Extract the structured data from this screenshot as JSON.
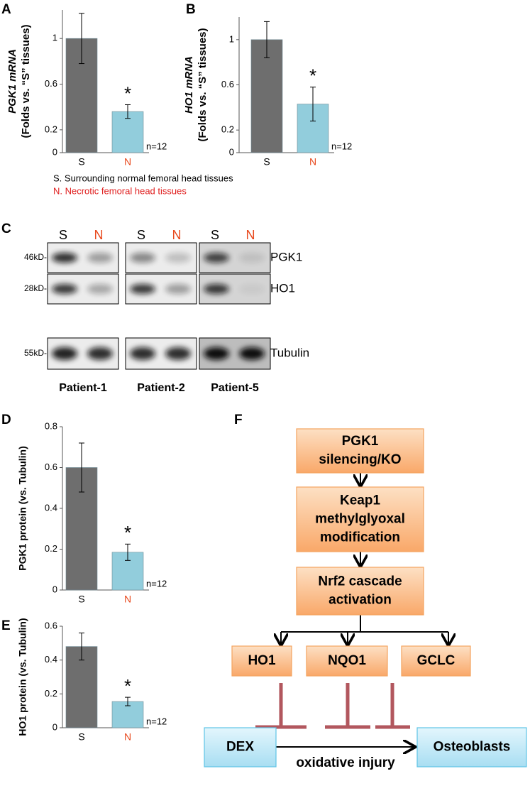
{
  "chart_data": [
    {
      "type": "bar",
      "panel_label": "A",
      "ylabel": [
        "PGK1 mRNA",
        "(Folds vs. “S” tissues)"
      ],
      "categories": [
        "S",
        "N"
      ],
      "values": [
        1,
        0.36
      ],
      "errors": [
        0.22,
        0.06
      ],
      "colors": [
        "#6e6e6e",
        "#92cddc"
      ],
      "category_colors": [
        "#000000",
        "#e8481c"
      ],
      "ylim": [
        0,
        1.25
      ],
      "yticks": [
        0,
        0.2,
        0.6,
        1
      ],
      "annotations": [
        "*",
        "n=12"
      ]
    },
    {
      "type": "bar",
      "panel_label": "B",
      "ylabel": [
        "HO1 mRNA",
        "(Folds vs. “S” tissues)"
      ],
      "categories": [
        "S",
        "N"
      ],
      "values": [
        1,
        0.43
      ],
      "errors": [
        0.16,
        0.15
      ],
      "colors": [
        "#6e6e6e",
        "#92cddc"
      ],
      "category_colors": [
        "#000000",
        "#e8481c"
      ],
      "ylim": [
        0,
        1.2
      ],
      "yticks": [
        0,
        0.2,
        0.6,
        1
      ],
      "annotations": [
        "*",
        "n=12"
      ]
    },
    {
      "type": "bar",
      "panel_label": "D",
      "ylabel": "PGK1 protein (vs. Tubulin)",
      "categories": [
        "S",
        "N"
      ],
      "values": [
        0.6,
        0.185
      ],
      "errors": [
        0.12,
        0.04
      ],
      "colors": [
        "#6e6e6e",
        "#92cddc"
      ],
      "category_colors": [
        "#000000",
        "#e8481c"
      ],
      "ylim": [
        0,
        0.8
      ],
      "yticks": [
        0,
        0.2,
        0.4,
        0.6,
        0.8
      ],
      "annotations": [
        "*",
        "n=12"
      ]
    },
    {
      "type": "bar",
      "panel_label": "E",
      "ylabel": "HO1 protein (vs. Tubulin)",
      "categories": [
        "S",
        "N"
      ],
      "values": [
        0.48,
        0.155
      ],
      "errors": [
        0.08,
        0.025
      ],
      "colors": [
        "#6e6e6e",
        "#92cddc"
      ],
      "category_colors": [
        "#000000",
        "#e8481c"
      ],
      "ylim": [
        0,
        0.6
      ],
      "yticks": [
        0,
        0.2,
        0.4,
        0.6
      ],
      "annotations": [
        "*",
        "n=12"
      ]
    }
  ],
  "legend_text": [
    "S. Surrounding normal femoral head tissues",
    "N. Necrotic femoral head tissues"
  ],
  "blot": {
    "panel_label": "C",
    "lanes": [
      "S",
      "N"
    ],
    "markers": [
      "46kD-",
      "28kD-",
      "55kD-"
    ],
    "proteins": [
      "PGK1",
      "HO1",
      "Tubulin"
    ],
    "patients": [
      "Patient-1",
      "Patient-2",
      "Patient-5"
    ]
  },
  "diagram": {
    "panel_label": "F",
    "nodes": [
      {
        "lines": [
          "PGK1",
          "silencing/KO"
        ]
      },
      {
        "lines": [
          "Keap1",
          "methylglyoxal",
          "modification"
        ]
      },
      {
        "lines": [
          "Nrf2 cascade",
          "activation"
        ]
      },
      {
        "lines": [
          "HO1"
        ]
      },
      {
        "lines": [
          "NQO1"
        ]
      },
      {
        "lines": [
          "GCLC"
        ]
      },
      {
        "lines": [
          "DEX"
        ]
      },
      {
        "lines": [
          "Osteoblasts"
        ]
      }
    ],
    "edge_label": "oxidative injury"
  }
}
